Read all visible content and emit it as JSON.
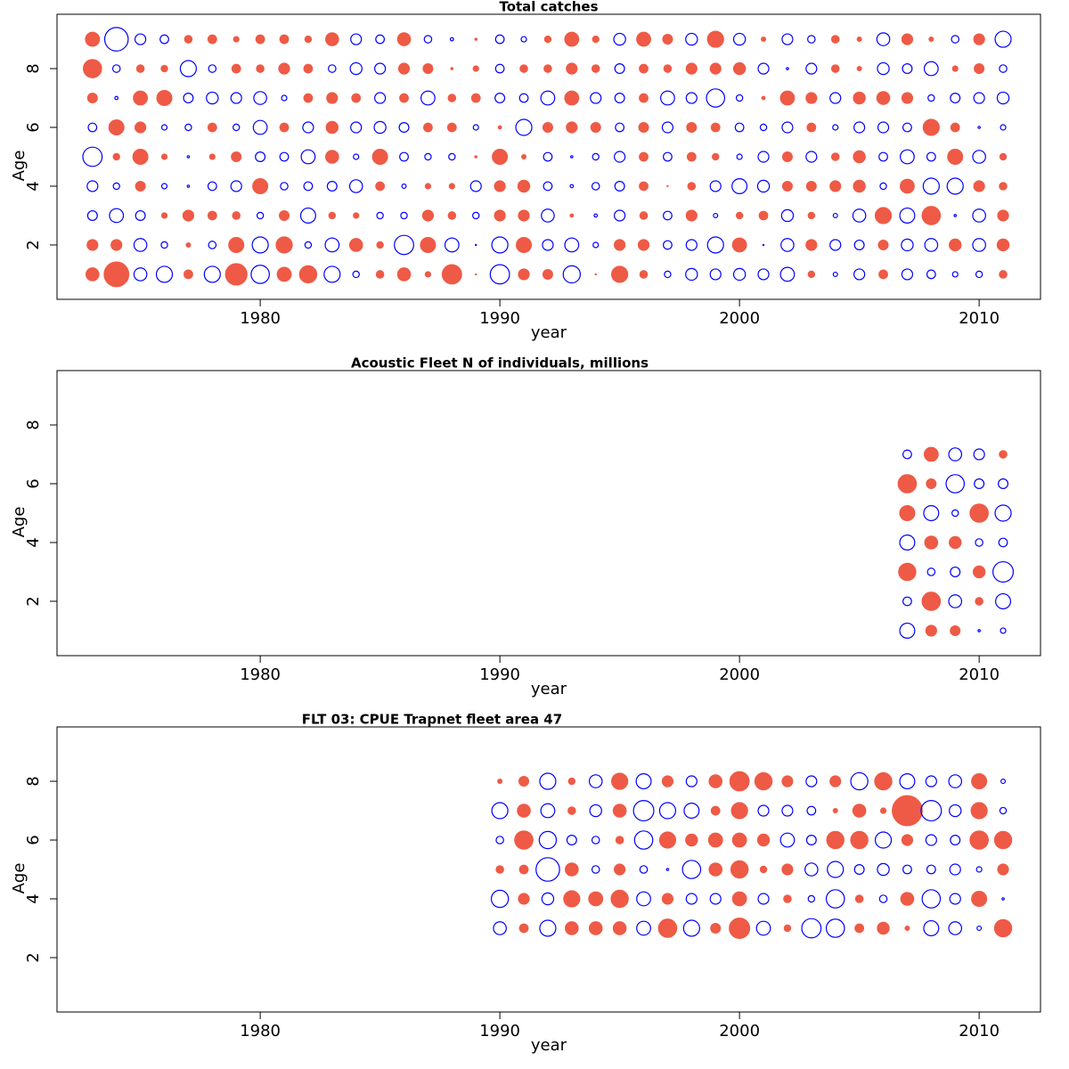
{
  "chart_data": [
    {
      "type": "bubble",
      "title": "Total catches",
      "x_label": "year",
      "y_label": "Age",
      "positive_color": "#ee5a45",
      "negative_color": "#0000ff",
      "xlim": [
        1971.52,
        2012.56
      ],
      "ylim": [
        0.15,
        9.85
      ],
      "xticks": [
        1980,
        1990,
        2000,
        2010
      ],
      "yticks": [
        2,
        4,
        6,
        8
      ],
      "x": [
        1973,
        1974,
        1975,
        1976,
        1977,
        1978,
        1979,
        1980,
        1981,
        1982,
        1983,
        1984,
        1985,
        1986,
        1987,
        1988,
        1989,
        1990,
        1991,
        1992,
        1993,
        1994,
        1995,
        1996,
        1997,
        1998,
        1999,
        2000,
        2001,
        2002,
        2003,
        2004,
        2005,
        2006,
        2007,
        2008,
        2009,
        2010,
        2011
      ],
      "y": [
        1,
        2,
        3,
        4,
        5,
        6,
        7,
        8,
        9
      ],
      "values": [
        [
          1.2,
          2.3,
          -1.2,
          -1.5,
          0.8,
          -1.5,
          2.0,
          -1.7,
          1.3,
          1.6,
          -1.5,
          -0.6,
          0.7,
          1.2,
          0.5,
          1.8,
          0.1,
          -1.8,
          1.0,
          0.9,
          -1.6,
          0.1,
          1.5,
          0.7,
          -0.6,
          -1.1,
          -1.0,
          -1.1,
          -1.0,
          -1.3,
          0.6,
          -0.4,
          -1.0,
          0.8,
          -1.0,
          -0.8,
          -0.5,
          -0.6,
          0.7
        ],
        [
          1.0,
          1.0,
          -1.2,
          -0.6,
          0.4,
          -0.7,
          1.4,
          -1.5,
          1.5,
          -0.6,
          -1.3,
          1.2,
          0.6,
          -1.8,
          1.4,
          -1.3,
          -0.1,
          -1.5,
          1.4,
          -1.0,
          -1.3,
          -0.5,
          1.0,
          1.0,
          -0.8,
          -1.0,
          -1.5,
          1.3,
          -0.1,
          -1.2,
          1.0,
          -1.0,
          -0.9,
          0.9,
          -1.1,
          -1.2,
          1.1,
          -1.2,
          1.1
        ],
        [
          -0.9,
          -1.3,
          -0.9,
          0.5,
          1.0,
          0.8,
          0.7,
          -0.6,
          0.9,
          -1.4,
          0.6,
          0.5,
          -0.6,
          -0.6,
          1.0,
          0.7,
          -0.6,
          1.0,
          1.0,
          -1.2,
          0.3,
          -0.3,
          -1.0,
          0.7,
          -0.8,
          1.0,
          -0.4,
          0.6,
          0.8,
          -1.1,
          0.6,
          -0.4,
          -1.2,
          1.5,
          -1.4,
          1.7,
          -0.2,
          -1.2,
          1.0
        ],
        [
          -1.0,
          -0.6,
          0.9,
          -0.5,
          -0.2,
          -0.8,
          -1.0,
          1.4,
          -0.7,
          -0.8,
          -0.9,
          -1.2,
          0.8,
          -0.4,
          0.5,
          0.5,
          -1.0,
          1.0,
          1.1,
          -0.8,
          -0.3,
          -0.7,
          -0.9,
          0.8,
          0.1,
          0.7,
          -1.0,
          -1.4,
          -1.1,
          0.9,
          0.9,
          1.0,
          1.1,
          -0.6,
          1.3,
          -1.5,
          -1.5,
          1.0,
          0.7
        ],
        [
          -1.8,
          0.6,
          1.4,
          0.5,
          -0.2,
          0.5,
          0.9,
          -0.9,
          -0.8,
          -1.3,
          1.2,
          -0.5,
          1.4,
          -0.8,
          -0.6,
          -0.6,
          0.2,
          1.4,
          0.4,
          -0.8,
          -0.2,
          -0.6,
          -1.0,
          0.8,
          -0.8,
          0.8,
          0.6,
          -0.5,
          -1.0,
          0.9,
          -1.0,
          0.7,
          1.1,
          -0.8,
          -1.3,
          -0.8,
          1.4,
          -1.2,
          0.6
        ],
        [
          -0.8,
          1.4,
          1.0,
          -0.5,
          -0.6,
          0.8,
          -0.6,
          -1.3,
          0.8,
          -1.0,
          1.1,
          -1.0,
          -1.1,
          -0.9,
          0.8,
          0.8,
          -0.5,
          0.3,
          -1.5,
          0.9,
          1.0,
          0.9,
          -0.8,
          0.9,
          -1.0,
          0.9,
          0.8,
          -0.8,
          -0.6,
          -1.0,
          0.8,
          -0.5,
          -1.0,
          -1.0,
          -0.8,
          1.5,
          0.8,
          -0.2,
          -0.5
        ],
        [
          0.9,
          -0.3,
          1.3,
          1.4,
          -0.9,
          -1.1,
          -1.0,
          -1.2,
          -0.5,
          0.8,
          1.0,
          0.8,
          -1.0,
          0.8,
          -1.3,
          0.7,
          0.8,
          -0.9,
          -0.8,
          -1.3,
          1.3,
          -1.0,
          -0.9,
          0.8,
          -1.3,
          -1.0,
          -1.7,
          -0.6,
          0.3,
          1.3,
          1.0,
          -1.0,
          1.1,
          1.2,
          1.0,
          -0.6,
          -0.9,
          -1.0,
          -1.1
        ],
        [
          1.7,
          -0.7,
          0.7,
          0.6,
          -1.5,
          -0.7,
          0.8,
          0.7,
          1.0,
          0.8,
          -0.7,
          -1.1,
          -1.0,
          1.0,
          0.9,
          0.2,
          0.5,
          -0.8,
          0.7,
          0.7,
          1.0,
          0.7,
          -0.9,
          0.8,
          0.7,
          1.0,
          1.0,
          1.1,
          -1.0,
          -0.2,
          -1.0,
          0.7,
          0.4,
          -1.1,
          -0.9,
          -1.3,
          0.5,
          0.9,
          -0.7
        ],
        [
          1.3,
          -2.2,
          -1.0,
          -0.8,
          0.7,
          0.8,
          0.5,
          0.8,
          0.8,
          0.6,
          1.2,
          -1.0,
          -0.8,
          1.2,
          -0.7,
          -0.3,
          0.2,
          -0.8,
          -0.5,
          0.6,
          1.3,
          0.6,
          -1.1,
          1.3,
          0.9,
          -1.1,
          1.5,
          -1.1,
          0.4,
          -1.0,
          -0.7,
          0.7,
          0.4,
          -1.2,
          1.0,
          0.4,
          -0.7,
          1.0,
          -1.5
        ]
      ]
    },
    {
      "type": "bubble",
      "title": "Acoustic Fleet  N of individuals, millions",
      "x_label": "year",
      "y_label": "Age",
      "positive_color": "#ee5a45",
      "negative_color": "#0000ff",
      "xlim": [
        1971.52,
        2012.56
      ],
      "ylim": [
        0.15,
        9.85
      ],
      "xticks": [
        1980,
        1990,
        2000,
        2010
      ],
      "yticks": [
        2,
        4,
        6,
        8
      ],
      "x": [
        2007,
        2008,
        2009,
        2010,
        2011
      ],
      "y": [
        1,
        2,
        3,
        4,
        5,
        6,
        7
      ],
      "values": [
        [
          -1.4,
          1.0,
          0.9,
          -0.2,
          -0.5
        ],
        [
          -0.8,
          1.7,
          -1.2,
          0.7,
          -1.4
        ],
        [
          1.6,
          -0.7,
          -0.9,
          1.1,
          -1.9
        ],
        [
          -1.4,
          1.2,
          1.1,
          -0.7,
          -0.8
        ],
        [
          1.4,
          -1.4,
          -0.6,
          1.7,
          -1.5
        ],
        [
          1.7,
          0.9,
          -1.7,
          -0.9,
          -0.9
        ],
        [
          -0.8,
          1.3,
          -1.2,
          -1.0,
          0.7
        ]
      ]
    },
    {
      "type": "bubble",
      "title": "FLT 03: CPUE Trapnet fleet area 47",
      "x_label": "year",
      "y_label": "Age",
      "positive_color": "#ee5a45",
      "negative_color": "#0000ff",
      "xlim": [
        1971.52,
        2012.56
      ],
      "ylim": [
        0.15,
        9.85
      ],
      "xticks": [
        1980,
        1990,
        2000,
        2010
      ],
      "yticks": [
        2,
        4,
        6,
        8
      ],
      "x": [
        1990,
        1991,
        1992,
        1993,
        1994,
        1995,
        1996,
        1997,
        1998,
        1999,
        2000,
        2001,
        2002,
        2003,
        2004,
        2005,
        2006,
        2007,
        2008,
        2009,
        2010,
        2011
      ],
      "y": [
        3,
        4,
        5,
        6,
        7,
        8
      ],
      "values": [
        [
          -1.2,
          0.8,
          -1.5,
          1.2,
          1.2,
          1.2,
          -1.3,
          1.7,
          -1.5,
          0.9,
          1.9,
          -1.3,
          0.6,
          -1.8,
          -1.7,
          0.8,
          1.1,
          0.4,
          -1.4,
          -1.2,
          -0.4,
          1.6
        ],
        [
          -1.6,
          1.0,
          -1.1,
          1.5,
          1.3,
          1.6,
          -1.3,
          1.0,
          -1.0,
          -1.0,
          1.3,
          -1.0,
          0.7,
          -0.6,
          -1.7,
          0.7,
          -0.7,
          1.2,
          -1.7,
          -1.0,
          1.4,
          -0.2
        ],
        [
          0.7,
          0.8,
          -2.2,
          1.2,
          -0.7,
          1.0,
          -0.7,
          -0.2,
          -1.7,
          1.2,
          1.6,
          0.6,
          1.0,
          -1.2,
          -1.5,
          -0.9,
          -1.1,
          -0.8,
          -0.8,
          -1.0,
          -0.5,
          1.0
        ],
        [
          -0.7,
          1.7,
          -1.6,
          -0.9,
          -0.7,
          0.7,
          -1.7,
          1.5,
          1.1,
          1.3,
          1.3,
          1.1,
          -1.3,
          -0.9,
          1.6,
          1.6,
          -1.5,
          1.0,
          -1.0,
          -0.9,
          1.7,
          1.6
        ],
        [
          -1.5,
          1.2,
          -1.3,
          0.7,
          -1.1,
          1.2,
          -1.9,
          -1.5,
          -1.4,
          0.8,
          1.5,
          -1.0,
          -1.0,
          -0.8,
          0.4,
          1.2,
          0.5,
          2.8,
          -1.9,
          -1.1,
          1.5,
          -0.6
        ],
        [
          0.4,
          0.9,
          -1.5,
          0.6,
          -1.2,
          1.5,
          -1.4,
          1.0,
          -1.0,
          1.2,
          1.8,
          1.6,
          1.0,
          -1.0,
          1.0,
          -1.6,
          1.6,
          -1.4,
          -1.0,
          -1.2,
          1.4,
          -0.4
        ]
      ]
    }
  ]
}
